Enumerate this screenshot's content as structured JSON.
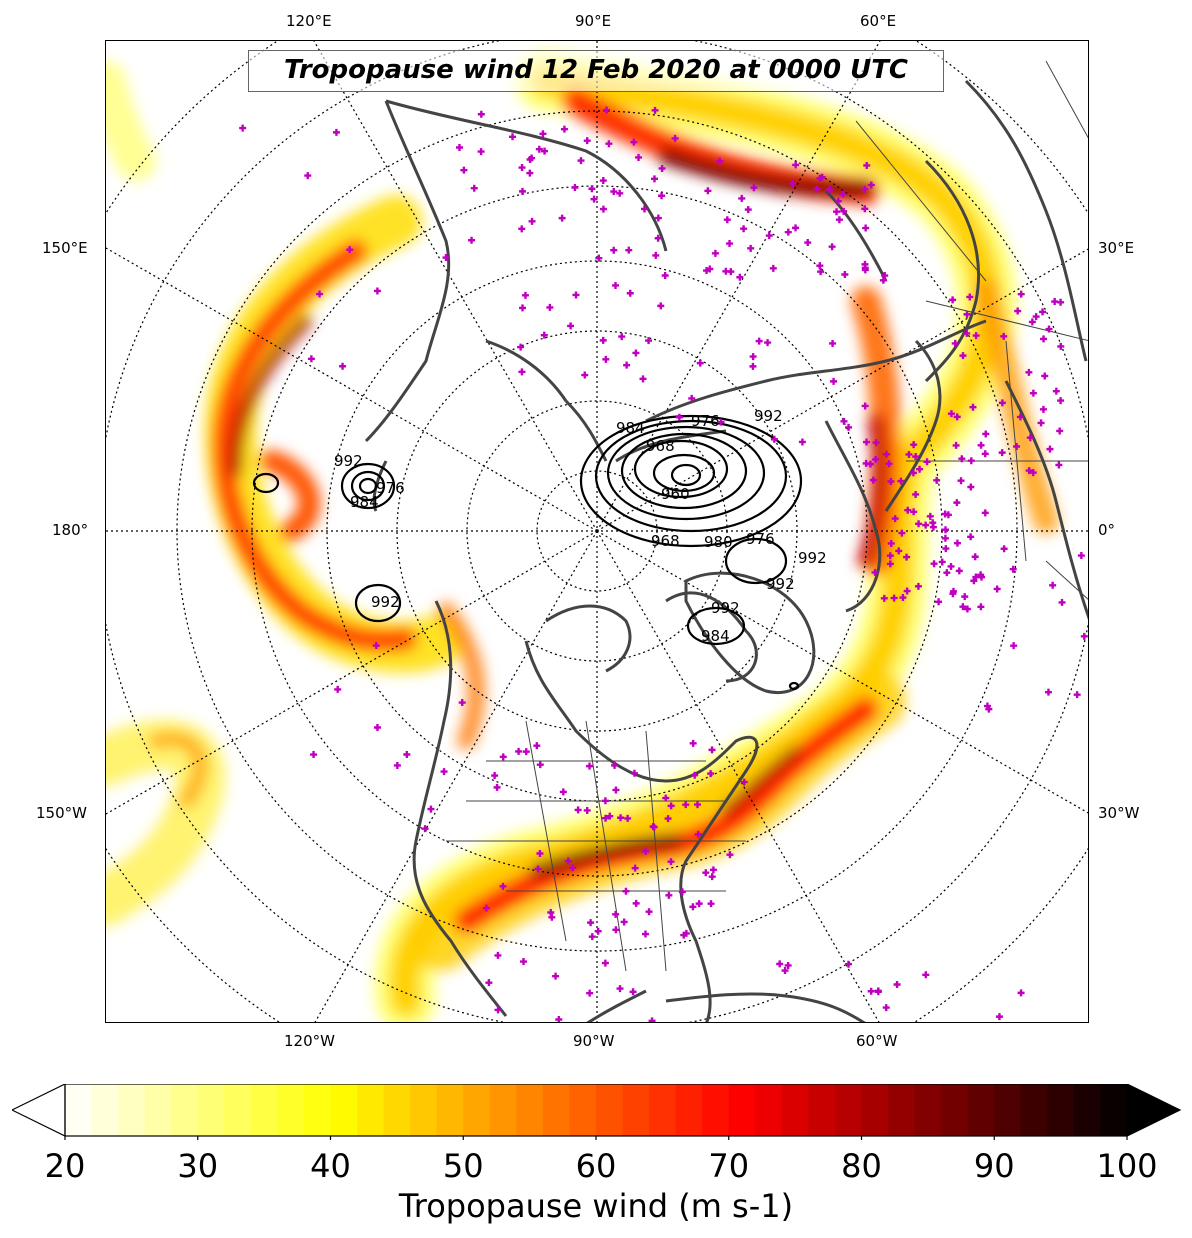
{
  "map": {
    "title": "Tropopause wind 12 Feb 2020 at 0000 UTC",
    "projection": "north-polar-stereographic",
    "top_labels": [
      "120°E",
      "90°E",
      "60°E"
    ],
    "left_labels": [
      "150°E",
      "180°",
      "150°W"
    ],
    "right_labels": [
      "30°E",
      "0°",
      "30°W"
    ],
    "bottom_labels": [
      "120°W",
      "90°W",
      "60°W"
    ],
    "contour_labels": [
      "992",
      "984",
      "976",
      "968",
      "960",
      "984",
      "976",
      "968",
      "980",
      "976",
      "992",
      "992",
      "984",
      "992",
      "992",
      "992"
    ],
    "colors": {
      "coastline": "#444444",
      "station_marker": "#c000c0",
      "contour": "#000000",
      "graticule": "#000000"
    }
  },
  "colorbar": {
    "min": 20,
    "max": 100,
    "step": 2,
    "extend": "both",
    "cmap": "hot_r",
    "ticks": [
      "20",
      "30",
      "40",
      "50",
      "60",
      "70",
      "80",
      "90",
      "100"
    ],
    "label": "Tropopause wind (m s-1)"
  }
}
